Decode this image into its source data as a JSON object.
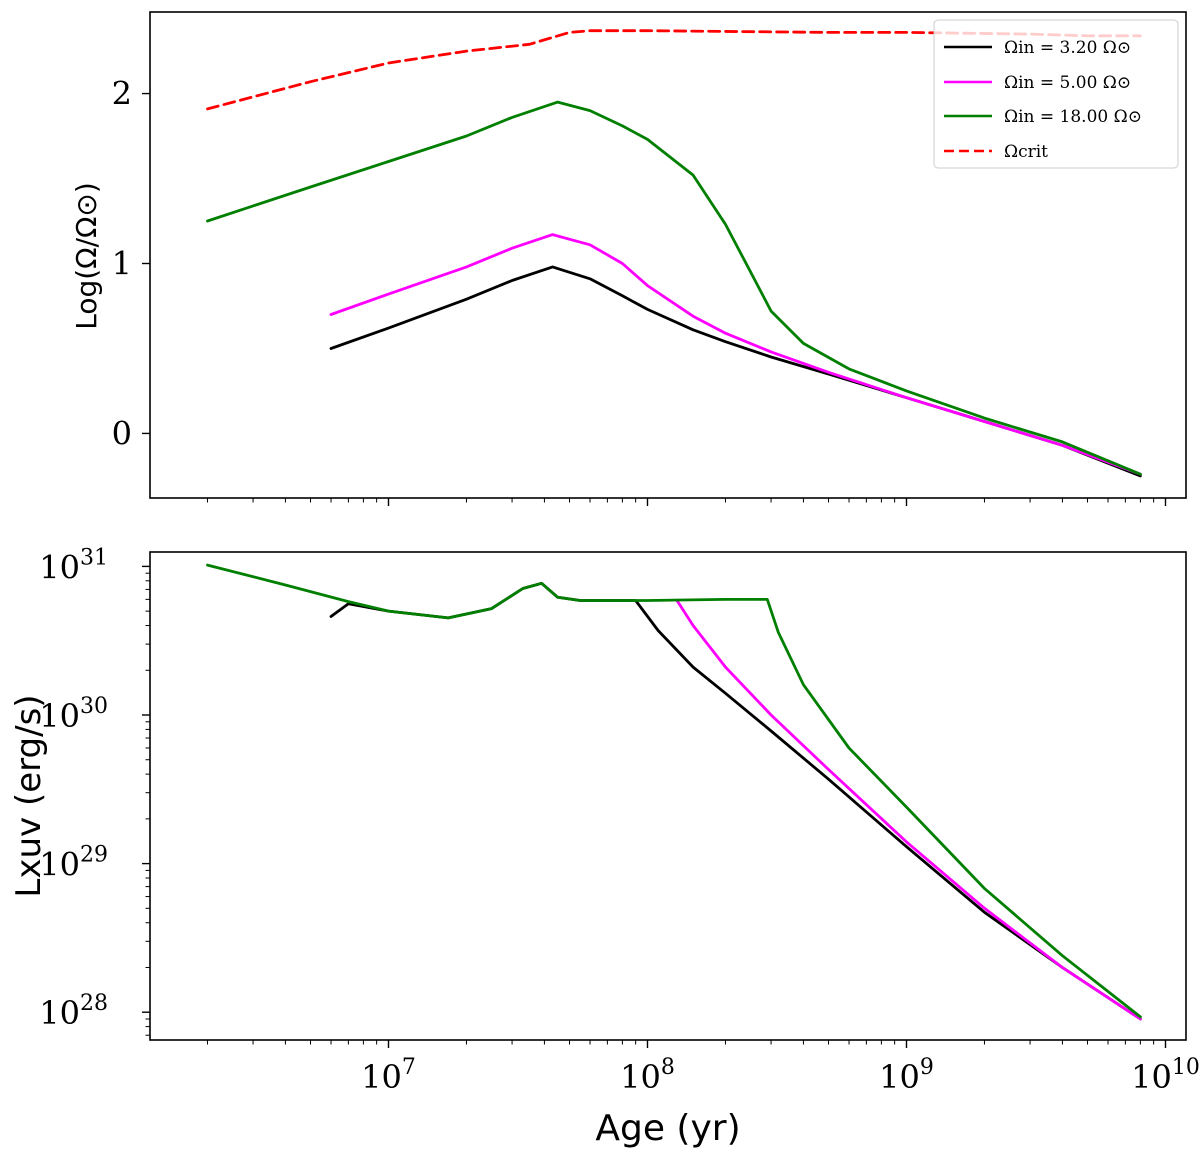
{
  "chart_data": [
    {
      "type": "line",
      "title": "",
      "xlabel": "",
      "ylabel": "Log(Ω/Ω⊙)",
      "xscale": "log",
      "xlim": [
        1200000.0,
        12000000000.0
      ],
      "ylim": [
        -0.38,
        2.48
      ],
      "yticks": [
        0,
        1,
        2
      ],
      "ytick_labels": [
        "0",
        "1",
        "2"
      ],
      "grid": false,
      "legend_position": "top-right",
      "legend": [
        {
          "label": "Ωin = 3.20 Ω⊙",
          "color": "#000000",
          "dash": false
        },
        {
          "label": "Ωin = 5.00 Ω⊙",
          "color": "#ff00ff",
          "dash": false
        },
        {
          "label": "Ωin = 18.00 Ω⊙",
          "color": "#007f00",
          "dash": false
        },
        {
          "label": "Ωcrit",
          "color": "#ff0000",
          "dash": true
        }
      ],
      "series": [
        {
          "name": "Ωin = 3.20 Ω⊙",
          "color": "#000000",
          "dash": false,
          "x": [
            6000000.0,
            10000000.0,
            20000000.0,
            30000000.0,
            43000000.0,
            60000000.0,
            80000000.0,
            100000000.0,
            150000000.0,
            200000000.0,
            300000000.0,
            500000000.0,
            1000000000.0,
            2000000000.0,
            4000000000.0,
            8000000000.0
          ],
          "y": [
            0.5,
            0.62,
            0.79,
            0.9,
            0.98,
            0.91,
            0.81,
            0.73,
            0.61,
            0.54,
            0.45,
            0.35,
            0.21,
            0.07,
            -0.07,
            -0.25
          ]
        },
        {
          "name": "Ωin = 5.00 Ω⊙",
          "color": "#ff00ff",
          "dash": false,
          "x": [
            6000000.0,
            10000000.0,
            20000000.0,
            30000000.0,
            43000000.0,
            60000000.0,
            80000000.0,
            100000000.0,
            150000000.0,
            200000000.0,
            300000000.0,
            500000000.0,
            1000000000.0,
            2000000000.0,
            4000000000.0,
            8000000000.0
          ],
          "y": [
            0.7,
            0.82,
            0.98,
            1.09,
            1.17,
            1.11,
            1.0,
            0.87,
            0.69,
            0.59,
            0.48,
            0.36,
            0.21,
            0.07,
            -0.07,
            -0.24
          ]
        },
        {
          "name": "Ωin = 18.00 Ω⊙",
          "color": "#007f00",
          "dash": false,
          "x": [
            2000000.0,
            5000000.0,
            10000000.0,
            20000000.0,
            30000000.0,
            45000000.0,
            60000000.0,
            80000000.0,
            100000000.0,
            150000000.0,
            200000000.0,
            250000000.0,
            300000000.0,
            400000000.0,
            600000000.0,
            1000000000.0,
            2000000000.0,
            4000000000.0,
            8000000000.0
          ],
          "y": [
            1.25,
            1.45,
            1.6,
            1.75,
            1.86,
            1.95,
            1.9,
            1.81,
            1.73,
            1.52,
            1.23,
            0.95,
            0.72,
            0.53,
            0.38,
            0.25,
            0.09,
            -0.05,
            -0.24
          ]
        },
        {
          "name": "Ωcrit",
          "color": "#ff0000",
          "dash": true,
          "x": [
            2000000.0,
            5000000.0,
            10000000.0,
            20000000.0,
            35000000.0,
            50000000.0,
            60000000.0,
            100000000.0,
            500000000.0,
            1000000000.0,
            3000000000.0,
            5000000000.0,
            8000000000.0
          ],
          "y": [
            1.91,
            2.07,
            2.18,
            2.25,
            2.29,
            2.36,
            2.37,
            2.37,
            2.36,
            2.36,
            2.35,
            2.34,
            2.34
          ]
        }
      ]
    },
    {
      "type": "line",
      "title": "",
      "xlabel": "Age (yr)",
      "ylabel": "Lxuv (erg/s)",
      "xscale": "log",
      "yscale": "log",
      "xlim": [
        1200000.0,
        12000000000.0
      ],
      "ylim": [
        6.5e+27,
        1.25e+31
      ],
      "xticks": [
        10000000.0,
        100000000.0,
        1000000000.0,
        10000000000.0
      ],
      "xtick_labels": [
        "10^7",
        "10^8",
        "10^9",
        "10^10"
      ],
      "yticks": [
        1e+28,
        1e+29,
        1e+30,
        1e+31
      ],
      "ytick_labels": [
        "10^28",
        "10^29",
        "10^30",
        "10^31"
      ],
      "grid": false,
      "series": [
        {
          "name": "Ωin = 3.20 Ω⊙",
          "color": "#000000",
          "dash": false,
          "x": [
            6000000.0,
            7000000.0,
            10000000.0,
            17000000.0,
            25000000.0,
            33000000.0,
            39000000.0,
            45000000.0,
            55000000.0,
            90000000.0,
            110000000.0,
            150000000.0,
            200000000.0,
            300000000.0,
            500000000.0,
            1000000000.0,
            2000000000.0,
            4000000000.0,
            8000000000.0
          ],
          "y": [
            4.6e+30,
            5.6e+30,
            5e+30,
            4.5e+30,
            5.2e+30,
            7.1e+30,
            7.7e+30,
            6.2e+30,
            5.9e+30,
            5.9e+30,
            3.7e+30,
            2.1e+30,
            1.4e+30,
            7.8e+29,
            3.7e+29,
            1.3e+29,
            4.7e+28,
            2e+28,
            9e+27
          ]
        },
        {
          "name": "Ωin = 5.00 Ω⊙",
          "color": "#ff00ff",
          "dash": false,
          "x": [
            130000000.0,
            150000000.0,
            200000000.0,
            300000000.0,
            500000000.0,
            1000000000.0,
            2000000000.0,
            4000000000.0,
            8000000000.0
          ],
          "y": [
            5.9e+30,
            4e+30,
            2.1e+30,
            1e+30,
            4.3e+29,
            1.4e+29,
            5e+28,
            2e+28,
            9e+27
          ]
        },
        {
          "name": "Ωin = 18.00 Ω⊙",
          "color": "#007f00",
          "dash": false,
          "x": [
            2000000.0,
            4000000.0,
            7000000.0,
            10000000.0,
            17000000.0,
            25000000.0,
            33000000.0,
            39000000.0,
            45000000.0,
            55000000.0,
            100000000.0,
            200000000.0,
            290000000.0,
            320000000.0,
            400000000.0,
            600000000.0,
            1000000000.0,
            2000000000.0,
            4000000000.0,
            8000000000.0
          ],
          "y": [
            1.02e+31,
            7.5e+30,
            5.8e+30,
            5e+30,
            4.5e+30,
            5.2e+30,
            7.1e+30,
            7.7e+30,
            6.2e+30,
            5.9e+30,
            5.9e+30,
            6e+30,
            6e+30,
            3.6e+30,
            1.6e+30,
            6e+29,
            2.4e+29,
            6.8e+28,
            2.4e+28,
            9.3e+27
          ]
        }
      ]
    }
  ]
}
